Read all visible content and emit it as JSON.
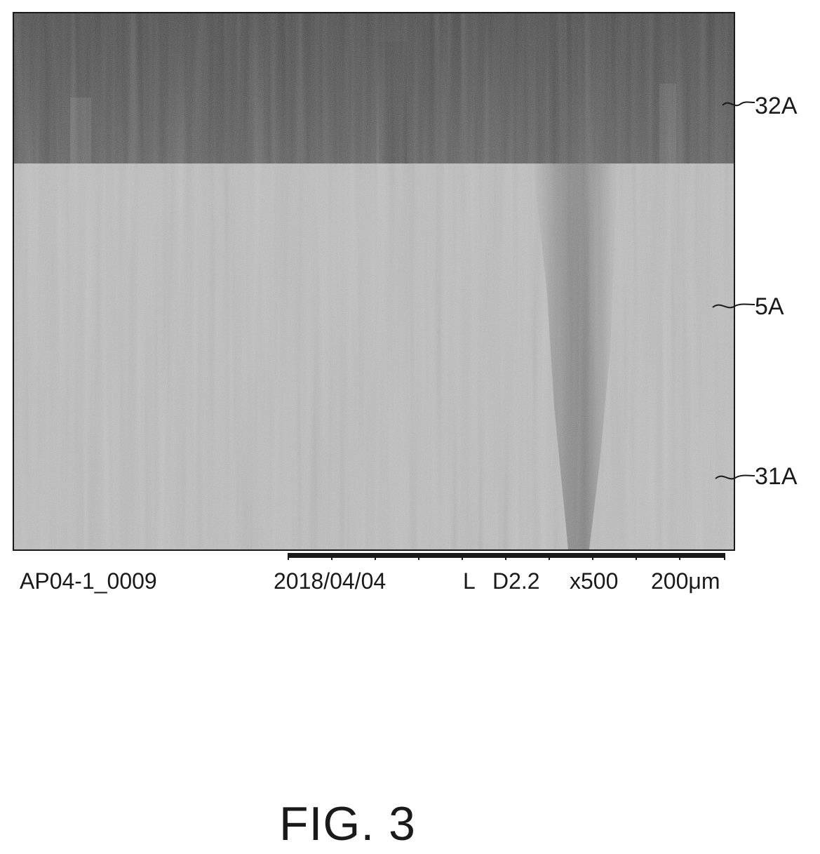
{
  "labels": {
    "layer_top": "32A",
    "layer_middle": "5A",
    "layer_bottom": "31A"
  },
  "caption": {
    "sample_id": "AP04-1_0009",
    "date": "2018/04/04",
    "mode": "L",
    "distance": "D2.2",
    "magnification": "x500",
    "scale": "200μm"
  },
  "figure_title": "FIG. 3",
  "colors": {
    "top_layer": "#4a4a4a",
    "lower_layer": "#bdbdbd",
    "ink": "#1a1a1a"
  }
}
